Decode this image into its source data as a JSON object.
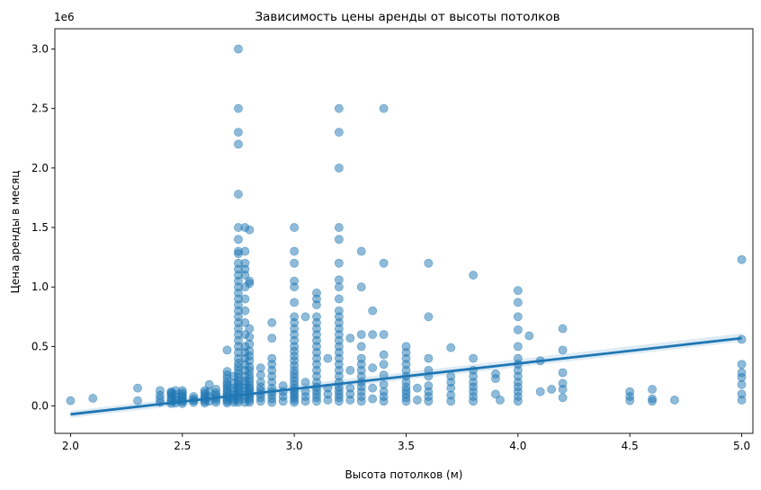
{
  "chart_data": {
    "type": "scatter",
    "title": "Зависимость цены аренды от высоты потолков",
    "xlabel": "Высота потолков (м)",
    "ylabel": "Цена аренды в месяц",
    "y_offset_label": "1e6",
    "xlim": [
      1.93,
      5.05
    ],
    "ylim": [
      -230000,
      3170000
    ],
    "x_ticks": [
      2.0,
      2.5,
      3.0,
      3.5,
      4.0,
      4.5,
      5.0
    ],
    "x_tick_labels": [
      "2.0",
      "2.5",
      "3.0",
      "3.5",
      "4.0",
      "4.5",
      "5.0"
    ],
    "y_ticks": [
      0,
      500000,
      1000000,
      1500000,
      2000000,
      2500000,
      3000000
    ],
    "y_tick_labels": [
      "0.0",
      "0.5",
      "1.0",
      "1.5",
      "2.0",
      "2.5",
      "3.0"
    ],
    "grid": false,
    "point_color": "#1f77b4",
    "point_alpha": 0.5,
    "columns": [
      {
        "x": 2.0,
        "y": [
          45000
        ]
      },
      {
        "x": 2.1,
        "y": [
          65000
        ]
      },
      {
        "x": 2.3,
        "y": [
          45000,
          150000
        ]
      },
      {
        "x": 2.4,
        "y": [
          30000,
          60000,
          90000,
          130000
        ]
      },
      {
        "x": 2.45,
        "y": [
          20000,
          40000,
          60000,
          80000,
          100000,
          110000,
          120000
        ]
      },
      {
        "x": 2.47,
        "y": [
          25000,
          50000,
          75000,
          100000,
          130000
        ]
      },
      {
        "x": 2.5,
        "y": [
          20000,
          35000,
          50000,
          65000,
          80000,
          95000,
          110000,
          130000
        ]
      },
      {
        "x": 2.55,
        "y": [
          30000,
          45000,
          60000,
          80000
        ]
      },
      {
        "x": 2.6,
        "y": [
          25000,
          40000,
          55000,
          70000,
          90000,
          110000,
          130000
        ]
      },
      {
        "x": 2.62,
        "y": [
          40000,
          80000,
          120000,
          180000
        ]
      },
      {
        "x": 2.65,
        "y": [
          30000,
          50000,
          70000,
          90000,
          110000,
          140000
        ]
      },
      {
        "x": 2.7,
        "y": [
          25000,
          40000,
          55000,
          70000,
          85000,
          100000,
          120000,
          140000,
          160000,
          180000,
          200000,
          230000,
          260000,
          290000,
          470000
        ]
      },
      {
        "x": 2.73,
        "y": [
          30000,
          50000,
          70000,
          90000,
          120000,
          150000,
          190000,
          250000
        ]
      },
      {
        "x": 2.75,
        "y": [
          30000,
          50000,
          70000,
          90000,
          110000,
          130000,
          150000,
          170000,
          190000,
          210000,
          240000,
          270000,
          300000,
          330000,
          360000,
          400000,
          450000,
          500000,
          550000,
          600000,
          650000,
          700000,
          750000,
          800000,
          850000,
          900000,
          950000,
          1000000,
          1050000,
          1100000,
          1150000,
          1200000,
          1280000,
          1300000,
          1400000,
          1500000,
          1780000,
          2200000,
          2300000,
          2500000,
          3000000
        ]
      },
      {
        "x": 2.78,
        "y": [
          30000,
          60000,
          90000,
          120000,
          150000,
          180000,
          210000,
          250000,
          300000,
          350000,
          400000,
          450000,
          500000,
          600000,
          700000,
          800000,
          900000,
          1000000,
          1100000,
          1150000,
          1200000,
          1300000,
          1500000
        ]
      },
      {
        "x": 2.8,
        "y": [
          30000,
          50000,
          70000,
          90000,
          110000,
          130000,
          150000,
          170000,
          200000,
          230000,
          260000,
          300000,
          330000,
          380000,
          420000,
          460000,
          520000,
          580000,
          650000,
          1030000,
          1050000,
          1480000
        ]
      },
      {
        "x": 2.85,
        "y": [
          40000,
          70000,
          100000,
          130000,
          160000,
          200000,
          260000,
          320000
        ]
      },
      {
        "x": 2.9,
        "y": [
          30000,
          60000,
          90000,
          120000,
          150000,
          200000,
          250000,
          300000,
          350000,
          400000,
          570000,
          700000
        ]
      },
      {
        "x": 2.95,
        "y": [
          40000,
          80000,
          120000,
          170000
        ]
      },
      {
        "x": 3.0,
        "y": [
          30000,
          50000,
          70000,
          90000,
          110000,
          130000,
          150000,
          180000,
          210000,
          240000,
          270000,
          300000,
          340000,
          380000,
          420000,
          460000,
          500000,
          550000,
          600000,
          650000,
          700000,
          750000,
          870000,
          1000000,
          1050000,
          1200000,
          1300000,
          1500000
        ]
      },
      {
        "x": 3.05,
        "y": [
          40000,
          80000,
          120000,
          200000,
          750000
        ]
      },
      {
        "x": 3.1,
        "y": [
          40000,
          70000,
          100000,
          130000,
          160000,
          200000,
          250000,
          300000,
          350000,
          400000,
          450000,
          500000,
          550000,
          600000,
          650000,
          700000,
          750000,
          850000,
          900000,
          950000
        ]
      },
      {
        "x": 3.15,
        "y": [
          50000,
          100000,
          150000,
          400000
        ]
      },
      {
        "x": 3.2,
        "y": [
          40000,
          70000,
          100000,
          130000,
          160000,
          200000,
          250000,
          300000,
          350000,
          400000,
          450000,
          500000,
          550000,
          600000,
          650000,
          700000,
          750000,
          800000,
          900000,
          1000000,
          1060000,
          1200000,
          1400000,
          1500000,
          2000000,
          2300000,
          2500000
        ]
      },
      {
        "x": 3.25,
        "y": [
          50000,
          100000,
          150000,
          300000,
          570000
        ]
      },
      {
        "x": 3.3,
        "y": [
          40000,
          80000,
          120000,
          160000,
          200000,
          250000,
          300000,
          350000,
          400000,
          500000,
          600000,
          1000000,
          1300000
        ]
      },
      {
        "x": 3.35,
        "y": [
          60000,
          150000,
          320000,
          600000,
          800000
        ]
      },
      {
        "x": 3.4,
        "y": [
          40000,
          80000,
          120000,
          180000,
          260000,
          350000,
          430000,
          600000,
          1200000,
          2500000
        ]
      },
      {
        "x": 3.5,
        "y": [
          40000,
          70000,
          100000,
          130000,
          160000,
          200000,
          250000,
          300000,
          350000,
          400000,
          450000,
          500000
        ]
      },
      {
        "x": 3.55,
        "y": [
          50000,
          150000
        ]
      },
      {
        "x": 3.6,
        "y": [
          40000,
          80000,
          120000,
          170000,
          250000,
          300000,
          400000,
          750000,
          1200000
        ]
      },
      {
        "x": 3.7,
        "y": [
          40000,
          90000,
          150000,
          200000,
          250000,
          490000
        ]
      },
      {
        "x": 3.8,
        "y": [
          40000,
          80000,
          120000,
          160000,
          200000,
          250000,
          300000,
          400000,
          1100000
        ]
      },
      {
        "x": 3.9,
        "y": [
          100000,
          230000,
          270000
        ]
      },
      {
        "x": 3.92,
        "y": [
          50000
        ]
      },
      {
        "x": 4.0,
        "y": [
          40000,
          80000,
          120000,
          160000,
          200000,
          250000,
          300000,
          350000,
          400000,
          500000,
          640000,
          750000,
          870000,
          970000
        ]
      },
      {
        "x": 4.05,
        "y": [
          590000
        ]
      },
      {
        "x": 4.1,
        "y": [
          120000,
          380000
        ]
      },
      {
        "x": 4.15,
        "y": [
          140000
        ]
      },
      {
        "x": 4.2,
        "y": [
          70000,
          140000,
          190000,
          280000,
          470000,
          650000
        ]
      },
      {
        "x": 4.5,
        "y": [
          45000,
          80000,
          120000
        ]
      },
      {
        "x": 4.6,
        "y": [
          40000,
          60000,
          140000
        ]
      },
      {
        "x": 4.7,
        "y": [
          50000
        ]
      },
      {
        "x": 5.0,
        "y": [
          50000,
          100000,
          180000,
          240000,
          280000,
          350000,
          560000,
          1230000
        ]
      }
    ],
    "regression": {
      "x": [
        2.0,
        5.0
      ],
      "y": [
        -70000,
        570000
      ],
      "ci_lower": [
        -100000,
        540000
      ],
      "ci_upper": [
        -40000,
        610000
      ],
      "color": "#1f77b4"
    }
  }
}
